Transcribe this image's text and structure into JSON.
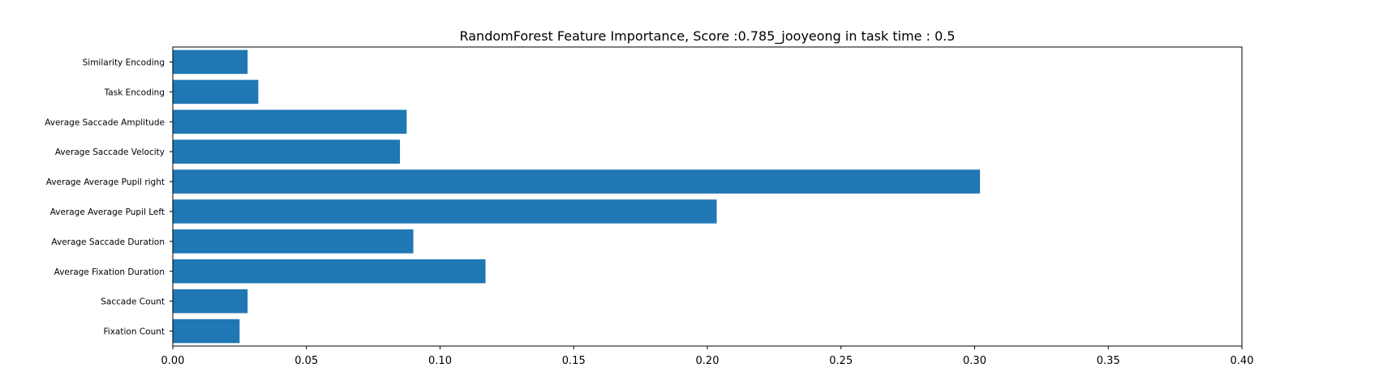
{
  "chart_data": {
    "type": "bar",
    "orientation": "horizontal",
    "title": "RandomForest Feature Importance, Score :0.785_jooyeong in task time : 0.5",
    "xlabel": "",
    "ylabel": "",
    "categories": [
      "Similarity Encoding",
      "Task Encoding",
      "Average Saccade Amplitude",
      "Average Saccade Velocity",
      "Average Average Pupil right",
      "Average Average Pupil Left",
      "Average Saccade Duration",
      "Average Fixation Duration",
      "Saccade Count",
      "Fixation Count"
    ],
    "values": [
      0.028,
      0.032,
      0.0875,
      0.085,
      0.302,
      0.2035,
      0.09,
      0.117,
      0.028,
      0.025
    ],
    "xlim": [
      0,
      0.4
    ],
    "xticks": [
      "0.00",
      "0.05",
      "0.10",
      "0.15",
      "0.20",
      "0.25",
      "0.30",
      "0.35",
      "0.40"
    ],
    "xtick_values": [
      0,
      0.05,
      0.1,
      0.15,
      0.2,
      0.25,
      0.3,
      0.35,
      0.4
    ],
    "grid": false,
    "legend": "none",
    "bar_color": "#1f77b4"
  }
}
